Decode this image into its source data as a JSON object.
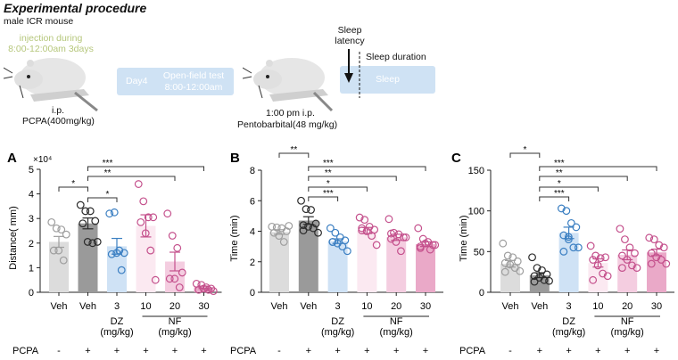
{
  "procedure": {
    "title": "Experimental procedure",
    "subtitle": "male ICR mouse",
    "injection_line1": "injection during",
    "injection_line2": "8:00-12:00am 3days",
    "ip1": "i.p.",
    "pcpa_dose": "PCPA(400mg/kg)",
    "day4": "Day4",
    "openfield_line1": "Open-field test",
    "openfield_line2": "8:00-12:00am",
    "ip2": "1:00 pm i.p.",
    "pentobarbital": "Pentobarbital(48 mg/kg)",
    "sleep_latency_1": "Sleep",
    "sleep_latency_2": "latency",
    "sleep_duration": "Sleep duration",
    "sleep_box": "Sleep",
    "accent_blue": "#cfe2f4",
    "accent_green": "#b6c77c"
  },
  "chart_data": [
    {
      "panel": "A",
      "type": "bar",
      "ylabel": "Distance( mm)",
      "multiplier": "×10⁴",
      "ylim": [
        0,
        5
      ],
      "yticks": [
        "0",
        "1",
        "2",
        "3",
        "4",
        "5"
      ],
      "categories": [
        "Veh",
        "Veh",
        "3",
        "10",
        "20",
        "30"
      ],
      "pcpa": [
        "-",
        "+",
        "+",
        "+",
        "+",
        "+"
      ],
      "means": [
        2.05,
        2.8,
        1.87,
        2.7,
        1.25,
        0.2
      ],
      "sem": [
        0.22,
        0.22,
        0.32,
        0.45,
        0.38,
        0.05
      ],
      "points": [
        [
          2.85,
          2.6,
          2.55,
          2.35,
          1.7,
          1.7,
          1.3
        ],
        [
          3.55,
          3.3,
          3.3,
          2.9,
          2.8,
          2.05,
          2.0,
          2.05
        ],
        [
          3.2,
          3.25,
          1.7,
          1.6,
          1.55,
          1.6,
          0.9
        ],
        [
          4.4,
          3.7,
          3.05,
          3.05,
          2.85,
          2.4,
          1.7,
          0.5
        ],
        [
          3.2,
          2.3,
          1.8,
          0.8,
          0.55,
          0.55,
          0.2
        ],
        [
          0.35,
          0.3,
          0.2,
          0.15,
          0.1,
          0.15,
          0.1,
          0.05
        ]
      ],
      "significance": [
        {
          "from": 0,
          "to": 1,
          "label": "*"
        },
        {
          "from": 1,
          "to": 2,
          "label": "*"
        },
        {
          "from": 1,
          "to": 4,
          "label": "**"
        },
        {
          "from": 1,
          "to": 5,
          "label": "***"
        }
      ]
    },
    {
      "panel": "B",
      "type": "bar",
      "ylabel": "Time (min)",
      "ylim": [
        0,
        8
      ],
      "yticks": [
        "0",
        "2",
        "4",
        "6",
        "8"
      ],
      "categories": [
        "Veh",
        "Veh",
        "3",
        "10",
        "20",
        "30"
      ],
      "pcpa": [
        "-",
        "+",
        "+",
        "+",
        "+",
        "+"
      ],
      "means": [
        3.95,
        4.7,
        3.35,
        4.05,
        3.6,
        3.15
      ],
      "sem": [
        0.15,
        0.25,
        0.15,
        0.2,
        0.2,
        0.15
      ],
      "points": [
        [
          4.3,
          4.25,
          4.2,
          4.0,
          3.9,
          3.7,
          3.3,
          4.35
        ],
        [
          6.0,
          5.45,
          5.4,
          4.5,
          4.4,
          4.3,
          4.2,
          3.9,
          4.05
        ],
        [
          4.2,
          3.9,
          3.6,
          3.4,
          3.3,
          3.2,
          3.0,
          2.7,
          3.3
        ],
        [
          4.9,
          4.75,
          4.3,
          4.1,
          4.05,
          4.0,
          3.7,
          3.1,
          4.2
        ],
        [
          4.8,
          3.9,
          3.8,
          3.6,
          3.5,
          3.3,
          2.7,
          3.6,
          3.85
        ],
        [
          4.2,
          3.5,
          3.3,
          3.1,
          3.0,
          3.2,
          2.8,
          3.1,
          2.9
        ]
      ],
      "significance": [
        {
          "from": 0,
          "to": 1,
          "label": "**"
        },
        {
          "from": 1,
          "to": 2,
          "label": "***"
        },
        {
          "from": 1,
          "to": 3,
          "label": "*"
        },
        {
          "from": 1,
          "to": 4,
          "label": "**"
        },
        {
          "from": 1,
          "to": 5,
          "label": "***"
        }
      ]
    },
    {
      "panel": "C",
      "type": "bar",
      "ylabel": "Time (min)",
      "ylim": [
        0,
        150
      ],
      "yticks": [
        "0",
        "50",
        "100",
        "150"
      ],
      "categories": [
        "Veh",
        "Veh",
        "3",
        "10",
        "20",
        "30"
      ],
      "pcpa": [
        "-",
        "+",
        "+",
        "+",
        "+",
        "+"
      ],
      "means": [
        35,
        21,
        73,
        36,
        46,
        49
      ],
      "sem": [
        4,
        3,
        7,
        5,
        6,
        4
      ],
      "points": [
        [
          60,
          45,
          43,
          38,
          36,
          34,
          30,
          26,
          25
        ],
        [
          43,
          30,
          27,
          22,
          20,
          18,
          15,
          14,
          13
        ],
        [
          103,
          100,
          85,
          80,
          70,
          65,
          55,
          55,
          50,
          68
        ],
        [
          57,
          45,
          42,
          43,
          40,
          33,
          23,
          20,
          15
        ],
        [
          78,
          65,
          55,
          48,
          45,
          40,
          33,
          30,
          30
        ],
        [
          67,
          65,
          58,
          55,
          48,
          43,
          40,
          35,
          35
        ]
      ],
      "significance": [
        {
          "from": 0,
          "to": 1,
          "label": "*"
        },
        {
          "from": 1,
          "to": 2,
          "label": "***"
        },
        {
          "from": 1,
          "to": 3,
          "label": "*"
        },
        {
          "from": 1,
          "to": 4,
          "label": "**"
        },
        {
          "from": 1,
          "to": 5,
          "label": "***"
        }
      ]
    }
  ],
  "groups": {
    "dz": "DZ",
    "nf": "NF",
    "unit": "(mg/kg)",
    "pcpa_label": "PCPA"
  },
  "colors": {
    "bars": [
      "#dcdcdc",
      "#9a9a9a",
      "#cfe2f5",
      "#fbe9f1",
      "#f4cde0",
      "#eaa9c8"
    ],
    "points": [
      "#9e9e9e",
      "#2a2a2a",
      "#3b7fc2",
      "#c4508c",
      "#c4508c",
      "#c4508c"
    ]
  }
}
